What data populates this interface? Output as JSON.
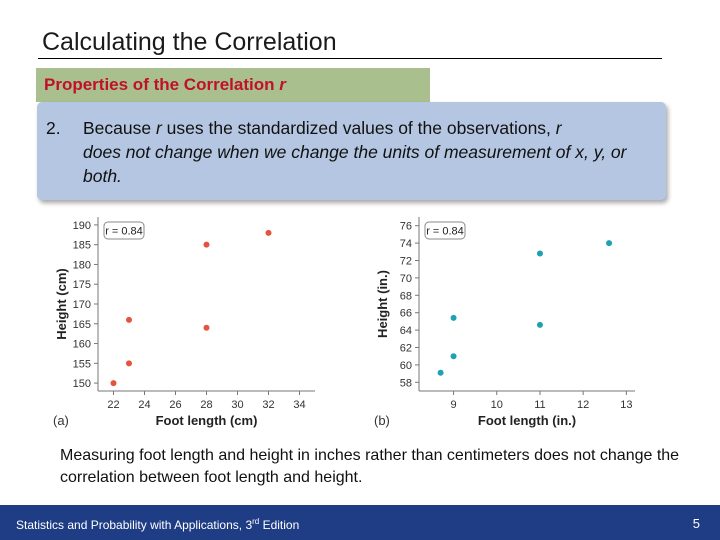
{
  "title": "Calculating the Correlation",
  "tag": {
    "text": "Properties of the Correlation ",
    "r": "r"
  },
  "point": {
    "number": "2.",
    "pre": "Because ",
    "r": "r",
    "mid": " uses the standardized values of the observations, ",
    "r2": "r",
    "post": "does not change when we change the units of measurement of x, y, or both."
  },
  "caption": "Measuring foot length and height in inches rather than centimeters does not change the correlation between foot length and height.",
  "footer": {
    "book_pre": "Statistics and Probability with Applications, 3",
    "book_sup": "rd",
    "book_post": " Edition",
    "page": "5"
  },
  "colors": {
    "panel_a_points": "#e4533c",
    "panel_b_points": "#1fa0b3",
    "callout": "#b4c6e1",
    "tag": "#a9c08e",
    "footer": "#1f3d85"
  },
  "chart_data": [
    {
      "type": "scatter",
      "panel": "(a)",
      "annotation": "r = 0.84",
      "xlabel": "Foot length (cm)",
      "ylabel": "Height (cm)",
      "xlim": [
        21,
        35
      ],
      "ylim": [
        148,
        192
      ],
      "xticks": [
        22,
        24,
        26,
        28,
        30,
        32,
        34
      ],
      "yticks": [
        150,
        155,
        160,
        165,
        170,
        175,
        180,
        185,
        190
      ],
      "x": [
        22,
        23,
        23,
        28,
        28,
        32
      ],
      "y": [
        150,
        155,
        166,
        164,
        185,
        188
      ],
      "grid": false
    },
    {
      "type": "scatter",
      "panel": "(b)",
      "annotation": "r = 0.84",
      "xlabel": "Foot length (in.)",
      "ylabel": "Height (in.)",
      "xlim": [
        8.2,
        13.2
      ],
      "ylim": [
        57,
        77
      ],
      "xticks": [
        9,
        10,
        11,
        12,
        13
      ],
      "yticks": [
        58,
        60,
        62,
        64,
        66,
        68,
        70,
        72,
        74,
        76
      ],
      "x": [
        8.7,
        9.0,
        9.0,
        11.0,
        11.0,
        12.6
      ],
      "y": [
        59.1,
        61.0,
        65.4,
        64.6,
        72.8,
        74.0
      ],
      "grid": false
    }
  ]
}
